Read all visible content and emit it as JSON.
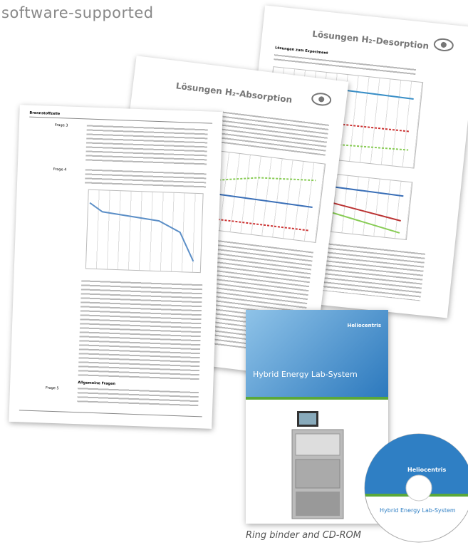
{
  "header": {
    "title": "software-supported"
  },
  "documents": [
    {
      "title": "Lösungen H₂-Desorption",
      "section": "Lösungen zum Experiment"
    },
    {
      "title": "Lösungen H₂-Absorption"
    },
    {
      "header": "Brennstoffzelle",
      "questions": [
        "Frage 3",
        "Frage 4",
        "Frage 5"
      ],
      "subheading": "Allgemeine Fragen"
    }
  ],
  "binder": {
    "brand": "Heliocentris",
    "title": "Hybrid Energy Lab-System"
  },
  "cd": {
    "brand": "Heliocentris",
    "title": "Hybrid Energy Lab-System"
  },
  "caption": "Ring binder and CD-ROM"
}
